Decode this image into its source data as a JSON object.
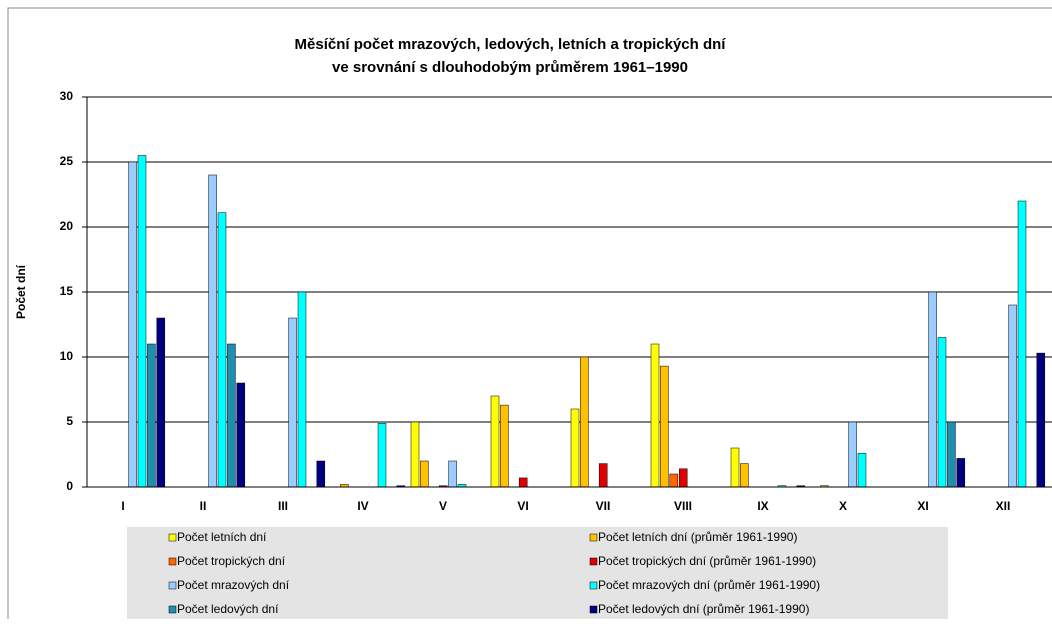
{
  "chart_data": {
    "type": "bar",
    "title": "Měsíční počet mrazových, ledových, letních a tropických dní",
    "subtitle": "ve srovnání s dlouhodobým průměrem 1961–1990",
    "y_label": "Počet dní",
    "categories": [
      "I",
      "II",
      "III",
      "IV",
      "V",
      "VI",
      "VII",
      "VIII",
      "IX",
      "X",
      "XI",
      "XII"
    ],
    "series": [
      {
        "name": "Počet letních dní",
        "color": "#ffff00",
        "values": [
          0,
          0,
          0,
          0,
          5,
          7,
          6,
          11,
          3,
          0,
          0,
          0
        ]
      },
      {
        "name": "Počet letních dní (průměr 1961-1990)",
        "color": "#ffc000",
        "values": [
          0,
          0,
          0,
          0.2,
          2,
          6.3,
          10,
          9.3,
          1.8,
          0.1,
          0,
          0
        ]
      },
      {
        "name": "Počet tropických dní",
        "color": "#ff6600",
        "values": [
          0,
          0,
          0,
          0,
          0,
          0,
          0,
          1,
          0,
          0,
          0,
          0
        ]
      },
      {
        "name": "Počet tropických dní (průměr 1961-1990)",
        "color": "#e00000",
        "values": [
          0,
          0,
          0,
          0,
          0.1,
          0.7,
          1.8,
          1.4,
          0,
          0,
          0,
          0
        ]
      },
      {
        "name": "Počet mrazových dní",
        "color": "#99ccff",
        "values": [
          25,
          24,
          13,
          0,
          2,
          0,
          0,
          0,
          0,
          5,
          15,
          14
        ]
      },
      {
        "name": "Počet mrazových dní (průměr 1961-1990)",
        "color": "#00ffff",
        "values": [
          25.5,
          21.1,
          15,
          4.9,
          0.2,
          0,
          0,
          0,
          0.1,
          2.6,
          11.5,
          22
        ]
      },
      {
        "name": "Počet ledových dní",
        "color": "#1f8fb0",
        "values": [
          11,
          11,
          0,
          0,
          0,
          0,
          0,
          0,
          0,
          0,
          5,
          0
        ]
      },
      {
        "name": "Počet ledových dní (průměr 1961-1990)",
        "color": "#000080",
        "values": [
          13,
          8,
          2,
          0.1,
          0,
          0,
          0,
          0,
          0.1,
          0,
          2.2,
          10.3
        ]
      }
    ],
    "ylim": [
      0,
      30
    ],
    "yticks": [
      0,
      5,
      10,
      15,
      20,
      25,
      30
    ],
    "grid": true
  }
}
